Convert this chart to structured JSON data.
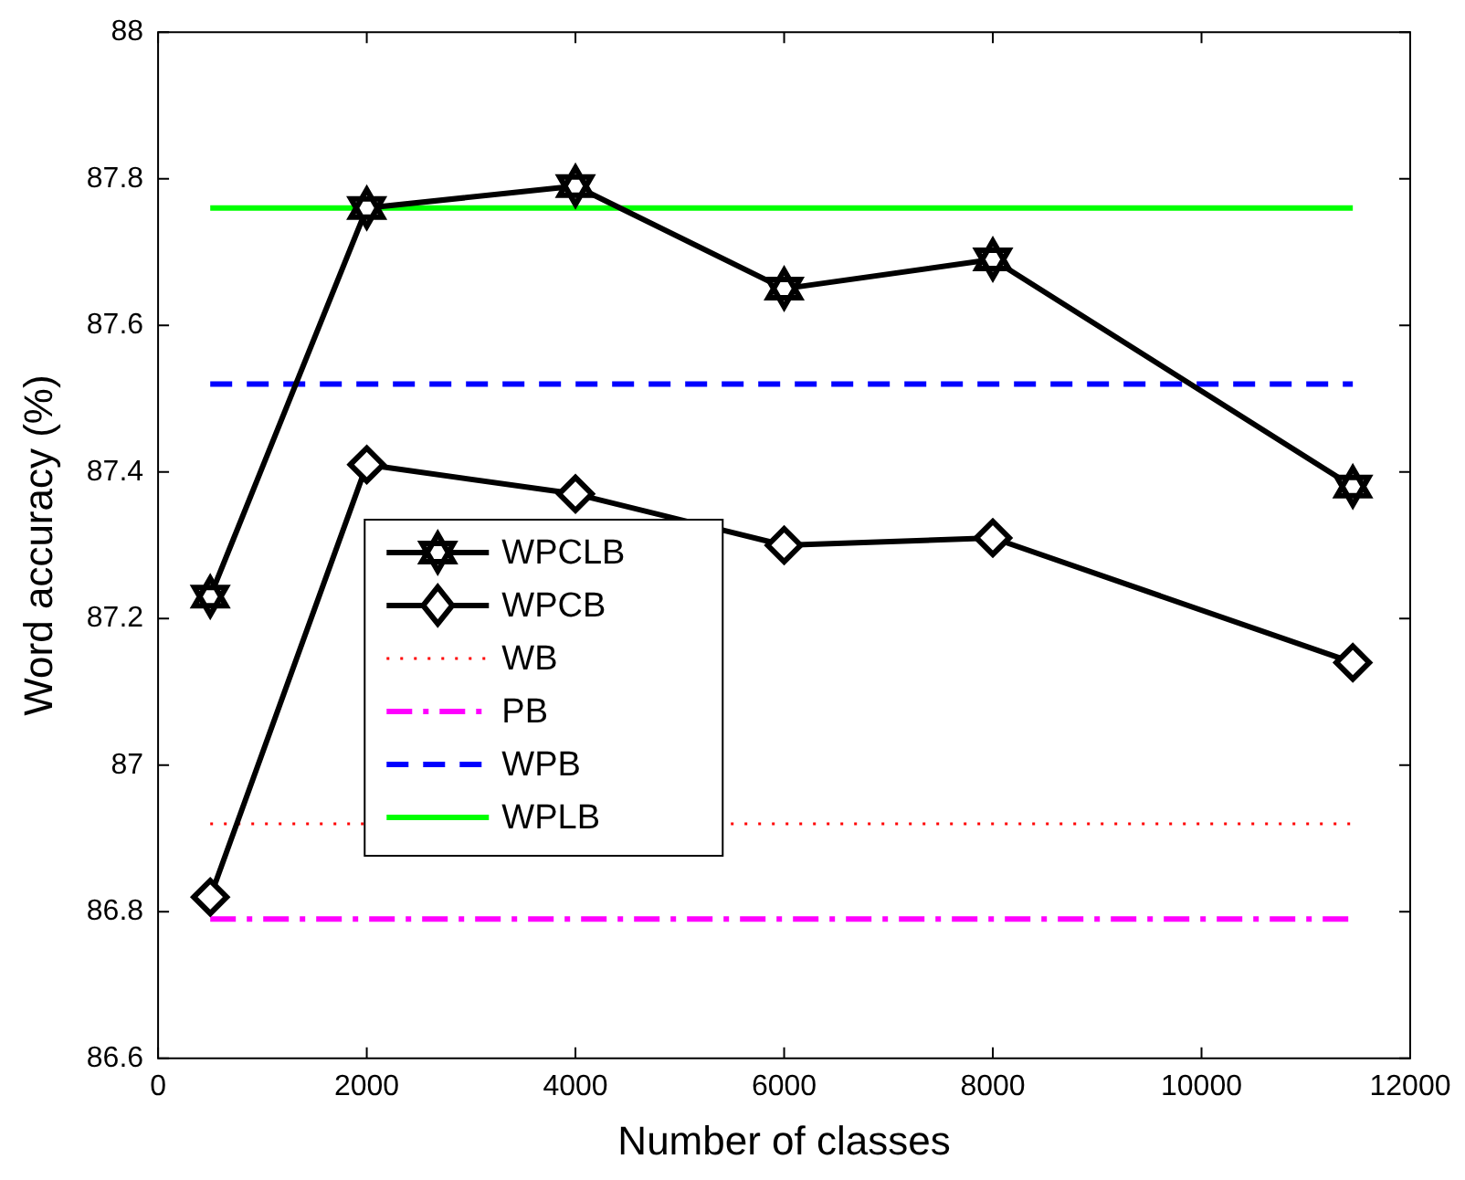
{
  "chart_data": {
    "type": "line",
    "xlabel": "Number of classes",
    "ylabel": "Word accuracy (%)",
    "xlim": [
      0,
      12000
    ],
    "xticks": [
      0,
      2000,
      4000,
      6000,
      8000,
      10000,
      12000
    ],
    "ylim": [
      86.6,
      88
    ],
    "yticks": [
      86.6,
      86.8,
      87,
      87.2,
      87.4,
      87.6,
      87.8,
      88
    ],
    "grid": false,
    "legend": "center left",
    "series": [
      {
        "name": "WPCLB",
        "color": "#000000",
        "marker": "star",
        "line_style": "solid",
        "x": [
          500,
          2000,
          4000,
          6000,
          8000,
          11450
        ],
        "values": [
          87.23,
          87.76,
          87.79,
          87.65,
          87.69,
          87.38
        ]
      },
      {
        "name": "WPCB",
        "color": "#000000",
        "marker": "diamond",
        "line_style": "solid",
        "x": [
          500,
          2000,
          4000,
          6000,
          8000,
          11450
        ],
        "values": [
          86.82,
          87.41,
          87.37,
          87.3,
          87.31,
          87.14
        ]
      },
      {
        "name": "WB",
        "color": "#ff0000",
        "marker": "none",
        "line_style": "dotted",
        "x": [
          500,
          11450
        ],
        "values": [
          86.92,
          86.92
        ]
      },
      {
        "name": "PB",
        "color": "#ff00ff",
        "marker": "none",
        "line_style": "dashdot",
        "x": [
          500,
          11450
        ],
        "values": [
          86.79,
          86.79
        ]
      },
      {
        "name": "WPB",
        "color": "#0000ff",
        "marker": "none",
        "line_style": "dashed",
        "x": [
          500,
          11450
        ],
        "values": [
          87.52,
          87.52
        ]
      },
      {
        "name": "WPLB",
        "color": "#00ff00",
        "marker": "none",
        "line_style": "solid",
        "x": [
          500,
          11450
        ],
        "values": [
          87.76,
          87.76
        ]
      }
    ]
  }
}
